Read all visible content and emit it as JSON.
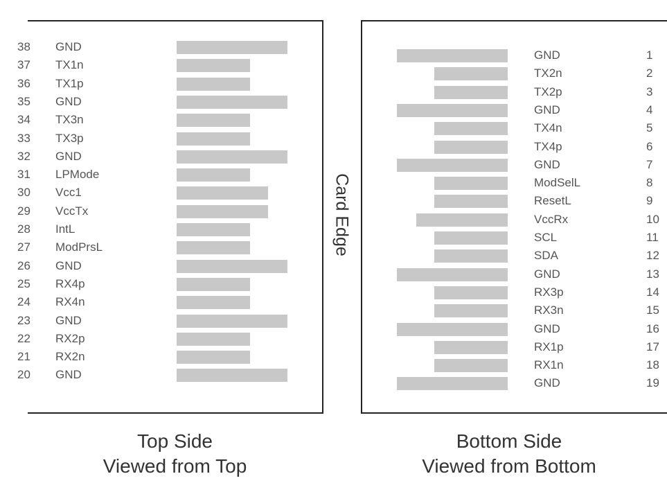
{
  "top_side": {
    "pins": [
      {
        "num": "38",
        "name": "GND",
        "bar": "long"
      },
      {
        "num": "37",
        "name": "TX1n",
        "bar": "short"
      },
      {
        "num": "36",
        "name": "TX1p",
        "bar": "short"
      },
      {
        "num": "35",
        "name": "GND",
        "bar": "long"
      },
      {
        "num": "34",
        "name": "TX3n",
        "bar": "short"
      },
      {
        "num": "33",
        "name": "TX3p",
        "bar": "short"
      },
      {
        "num": "32",
        "name": "GND",
        "bar": "long"
      },
      {
        "num": "31",
        "name": "LPMode",
        "bar": "short"
      },
      {
        "num": "30",
        "name": "Vcc1",
        "bar": "medium"
      },
      {
        "num": "29",
        "name": "VccTx",
        "bar": "medium"
      },
      {
        "num": "28",
        "name": "IntL",
        "bar": "short"
      },
      {
        "num": "27",
        "name": "ModPrsL",
        "bar": "short"
      },
      {
        "num": "26",
        "name": "GND",
        "bar": "long"
      },
      {
        "num": "25",
        "name": "RX4p",
        "bar": "short"
      },
      {
        "num": "24",
        "name": "RX4n",
        "bar": "short"
      },
      {
        "num": "23",
        "name": "GND",
        "bar": "long"
      },
      {
        "num": "22",
        "name": "RX2p",
        "bar": "short"
      },
      {
        "num": "21",
        "name": "RX2n",
        "bar": "short"
      },
      {
        "num": "20",
        "name": "GND",
        "bar": "long"
      }
    ],
    "caption_line1": "Top Side",
    "caption_line2": "Viewed from Top"
  },
  "bottom_side": {
    "pins": [
      {
        "num": "1",
        "name": "GND",
        "bar": "long"
      },
      {
        "num": "2",
        "name": "TX2n",
        "bar": "short"
      },
      {
        "num": "3",
        "name": "TX2p",
        "bar": "short"
      },
      {
        "num": "4",
        "name": "GND",
        "bar": "long"
      },
      {
        "num": "5",
        "name": "TX4n",
        "bar": "short"
      },
      {
        "num": "6",
        "name": "TX4p",
        "bar": "short"
      },
      {
        "num": "7",
        "name": "GND",
        "bar": "long"
      },
      {
        "num": "8",
        "name": "ModSelL",
        "bar": "short"
      },
      {
        "num": "9",
        "name": "ResetL",
        "bar": "short"
      },
      {
        "num": "10",
        "name": "VccRx",
        "bar": "medium"
      },
      {
        "num": "11",
        "name": "SCL",
        "bar": "short"
      },
      {
        "num": "12",
        "name": "SDA",
        "bar": "short"
      },
      {
        "num": "13",
        "name": "GND",
        "bar": "long"
      },
      {
        "num": "14",
        "name": "RX3p",
        "bar": "short"
      },
      {
        "num": "15",
        "name": "RX3n",
        "bar": "short"
      },
      {
        "num": "16",
        "name": "GND",
        "bar": "long"
      },
      {
        "num": "17",
        "name": "RX1p",
        "bar": "short"
      },
      {
        "num": "18",
        "name": "RX1n",
        "bar": "short"
      },
      {
        "num": "19",
        "name": "GND",
        "bar": "long"
      }
    ],
    "caption_line1": "Bottom Side",
    "caption_line2": "Viewed from Bottom"
  },
  "card_edge_label": "Card Edge",
  "colors": {
    "contact_bar": "#c8c8c8",
    "border": "#222222",
    "text": "#555555"
  }
}
